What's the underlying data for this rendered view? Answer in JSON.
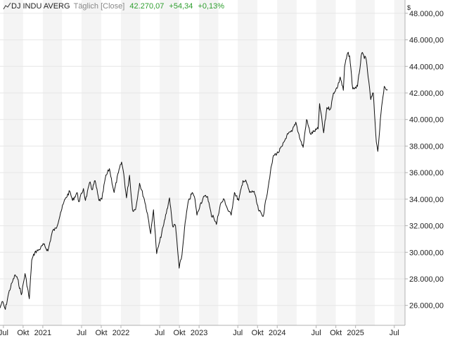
{
  "header": {
    "name": "DJ INDU AVERG",
    "interval": "Täglich [Close]",
    "price": "42.270,07",
    "change": "+54,34",
    "change_pct": "+0,13%",
    "change_color": "#2e9e2e",
    "icon": "line-chart-icon"
  },
  "currency_symbol": "$",
  "colors": {
    "line": "#111111",
    "band": "#f4f4f4",
    "grid": "#e6e6e6",
    "axis": "#b0b0b0"
  },
  "chart_data": {
    "type": "line",
    "title": "",
    "xlabel": "",
    "ylabel": "",
    "y_axis_side": "right",
    "ylim": [
      24500,
      49000
    ],
    "xlim": [
      "2020-06-15",
      "2025-08-20"
    ],
    "y_ticks": [
      26000,
      28000,
      30000,
      32000,
      34000,
      36000,
      38000,
      40000,
      42000,
      44000,
      46000,
      48000
    ],
    "y_tick_labels": [
      "26.000,00",
      "28.000,00",
      "30.000,00",
      "32.000,00",
      "34.000,00",
      "36.000,00",
      "38.000,00",
      "40.000,00",
      "42.000,00",
      "44.000,00",
      "46.000,00",
      "48.000,00"
    ],
    "x_ticks": [
      {
        "date": "2020-07-01",
        "label": "Jul"
      },
      {
        "date": "2020-10-01",
        "label": "Okt"
      },
      {
        "date": "2021-01-01",
        "label": "2021"
      },
      {
        "date": "2021-07-01",
        "label": "Jul"
      },
      {
        "date": "2021-10-01",
        "label": "Okt"
      },
      {
        "date": "2022-01-01",
        "label": "2022"
      },
      {
        "date": "2022-07-01",
        "label": "Jul"
      },
      {
        "date": "2022-10-01",
        "label": "Okt"
      },
      {
        "date": "2023-01-01",
        "label": "2023"
      },
      {
        "date": "2023-07-01",
        "label": "Jul"
      },
      {
        "date": "2023-10-01",
        "label": "Okt"
      },
      {
        "date": "2024-01-01",
        "label": "2024"
      },
      {
        "date": "2024-07-01",
        "label": "Jul"
      },
      {
        "date": "2024-10-01",
        "label": "Okt"
      },
      {
        "date": "2025-01-01",
        "label": "2025"
      },
      {
        "date": "2025-07-01",
        "label": "Jul"
      }
    ],
    "grid": true,
    "legend": "none",
    "series": [
      {
        "x": [
          "2020-06-15",
          "2020-06-25",
          "2020-07-10",
          "2020-07-25",
          "2020-08-10",
          "2020-08-25",
          "2020-09-05",
          "2020-09-23",
          "2020-10-10",
          "2020-10-30",
          "2020-11-10",
          "2020-11-25",
          "2020-12-15",
          "2021-01-05",
          "2021-01-25",
          "2021-02-15",
          "2021-03-05",
          "2021-03-25",
          "2021-04-15",
          "2021-05-07",
          "2021-05-20",
          "2021-06-10",
          "2021-06-18",
          "2021-07-10",
          "2021-07-19",
          "2021-08-10",
          "2021-08-19",
          "2021-09-02",
          "2021-09-20",
          "2021-10-04",
          "2021-10-20",
          "2021-11-08",
          "2021-11-30",
          "2021-12-20",
          "2022-01-04",
          "2022-01-14",
          "2022-01-27",
          "2022-02-10",
          "2022-02-24",
          "2022-03-10",
          "2022-03-29",
          "2022-04-20",
          "2022-05-05",
          "2022-05-20",
          "2022-06-02",
          "2022-06-17",
          "2022-07-01",
          "2022-07-20",
          "2022-08-16",
          "2022-08-30",
          "2022-09-13",
          "2022-09-30",
          "2022-10-13",
          "2022-10-25",
          "2022-11-10",
          "2022-11-30",
          "2022-12-13",
          "2022-12-22",
          "2023-01-06",
          "2023-01-25",
          "2023-02-10",
          "2023-02-28",
          "2023-03-07",
          "2023-03-23",
          "2023-04-10",
          "2023-04-28",
          "2023-05-15",
          "2023-05-31",
          "2023-06-15",
          "2023-07-05",
          "2023-07-25",
          "2023-08-10",
          "2023-08-25",
          "2023-09-15",
          "2023-10-05",
          "2023-10-27",
          "2023-11-10",
          "2023-11-30",
          "2023-12-15",
          "2024-01-05",
          "2024-01-25",
          "2024-02-15",
          "2024-03-10",
          "2024-03-28",
          "2024-04-17",
          "2024-05-01",
          "2024-05-17",
          "2024-06-05",
          "2024-06-20",
          "2024-07-10",
          "2024-07-17",
          "2024-08-05",
          "2024-08-20",
          "2024-09-06",
          "2024-09-20",
          "2024-10-10",
          "2024-10-21",
          "2024-11-05",
          "2024-11-11",
          "2024-11-25",
          "2024-12-04",
          "2024-12-19",
          "2025-01-10",
          "2025-01-30",
          "2025-02-20",
          "2025-03-13",
          "2025-03-25",
          "2025-04-08",
          "2025-04-15",
          "2025-04-30",
          "2025-05-15",
          "2025-05-30"
        ],
        "y": [
          25800,
          26300,
          25700,
          26900,
          27700,
          28300,
          28000,
          26800,
          28400,
          26500,
          29400,
          30000,
          30200,
          30600,
          30100,
          31600,
          31800,
          33000,
          34000,
          34600,
          33900,
          34500,
          33800,
          34800,
          33900,
          35300,
          34700,
          35400,
          33900,
          34000,
          35600,
          36300,
          34500,
          36000,
          36800,
          35900,
          34100,
          35800,
          33200,
          33200,
          35200,
          34000,
          32900,
          31400,
          33200,
          29900,
          30800,
          32100,
          34100,
          32000,
          32000,
          28800,
          29800,
          31800,
          33700,
          34500,
          34000,
          32800,
          33600,
          34200,
          34200,
          32700,
          32800,
          32100,
          33600,
          34000,
          33200,
          32800,
          34500,
          33900,
          35400,
          35300,
          34500,
          34600,
          33200,
          32700,
          34000,
          36000,
          37300,
          37500,
          38000,
          38800,
          39100,
          39800,
          38500,
          37900,
          40000,
          38900,
          39100,
          39300,
          41200,
          39000,
          40900,
          40800,
          42000,
          42500,
          43200,
          42200,
          44000,
          45000,
          44800,
          42300,
          42500,
          45000,
          44500,
          41500,
          42000,
          38300,
          37600,
          40500,
          42500,
          42270
        ]
      }
    ]
  }
}
